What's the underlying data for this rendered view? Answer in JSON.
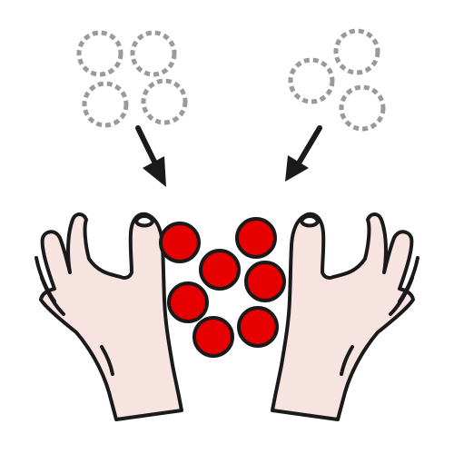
{
  "colors": {
    "background": "#ffffff",
    "outline": "#1a1a1a",
    "skin": "#f7e4e0",
    "ball": "#e60000",
    "ghost_circle": "#9a9a9a",
    "nail": "#ffffff"
  },
  "icons": {
    "left_hand": "left-hand-icon",
    "right_hand": "right-hand-icon",
    "left_arrow": "arrow-down-right-icon",
    "right_arrow": "arrow-down-left-icon",
    "ball": "red-circle-icon",
    "ghost": "dashed-circle-icon"
  },
  "counts": {
    "left_ghost_circles": 4,
    "right_ghost_circles": 3,
    "red_balls": 7
  }
}
